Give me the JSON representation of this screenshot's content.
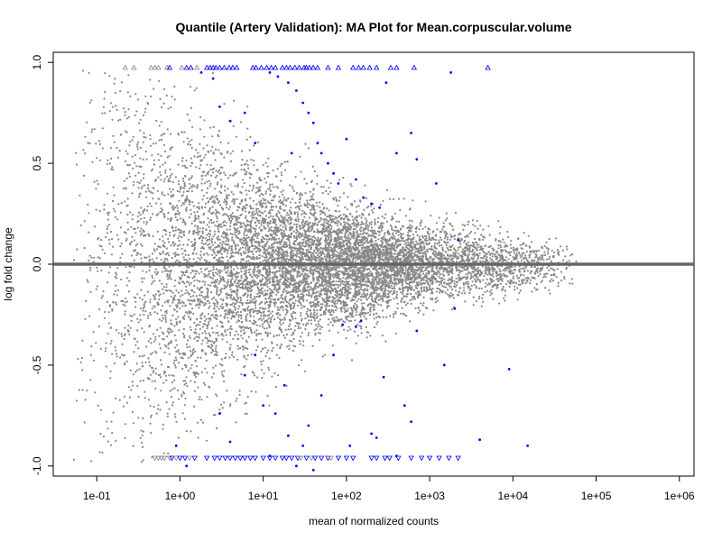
{
  "chart_data": {
    "type": "scatter",
    "title": "Quantile (Artery Validation): MA Plot for Mean.corpuscular.volume",
    "xlabel": "mean of normalized counts",
    "ylabel": "log fold change",
    "x_scale": "log10",
    "xlim": [
      0.03,
      1500000
    ],
    "ylim": [
      -1.05,
      1.05
    ],
    "x_ticks": [
      {
        "value": 0.1,
        "label": "1e-01"
      },
      {
        "value": 1,
        "label": "1e+00"
      },
      {
        "value": 10,
        "label": "1e+01"
      },
      {
        "value": 100,
        "label": "1e+02"
      },
      {
        "value": 1000,
        "label": "1e+03"
      },
      {
        "value": 10000,
        "label": "1e+04"
      },
      {
        "value": 100000,
        "label": "1e+05"
      },
      {
        "value": 1000000,
        "label": "1e+06"
      }
    ],
    "y_ticks": [
      {
        "value": 1.0,
        "label": "1.0"
      },
      {
        "value": 0.5,
        "label": "0.5"
      },
      {
        "value": 0.0,
        "label": "0.0"
      },
      {
        "value": -0.5,
        "label": "-0.5"
      },
      {
        "value": -1.0,
        "label": "-1.0"
      }
    ],
    "reference_line": {
      "y": 0,
      "color": "#666666"
    },
    "colors": {
      "not_significant": "#888888",
      "significant": "#0000ff"
    },
    "significant_points": [
      {
        "x": 12,
        "y": 0.95
      },
      {
        "x": 15,
        "y": 0.93
      },
      {
        "x": 20,
        "y": 0.9
      },
      {
        "x": 25,
        "y": 0.86
      },
      {
        "x": 30,
        "y": 0.8
      },
      {
        "x": 35,
        "y": 0.75
      },
      {
        "x": 40,
        "y": 0.7
      },
      {
        "x": 45,
        "y": 0.6
      },
      {
        "x": 50,
        "y": 0.55
      },
      {
        "x": 60,
        "y": 0.5
      },
      {
        "x": 70,
        "y": 0.45
      },
      {
        "x": 80,
        "y": 0.4
      },
      {
        "x": 100,
        "y": 0.62
      },
      {
        "x": 130,
        "y": 0.42
      },
      {
        "x": 160,
        "y": 0.33
      },
      {
        "x": 200,
        "y": 0.3
      },
      {
        "x": 250,
        "y": 0.28
      },
      {
        "x": 300,
        "y": 0.9
      },
      {
        "x": 400,
        "y": 0.55
      },
      {
        "x": 600,
        "y": 0.65
      },
      {
        "x": 700,
        "y": 0.52
      },
      {
        "x": 1200,
        "y": 0.4
      },
      {
        "x": 1800,
        "y": 0.95
      },
      {
        "x": 2200,
        "y": 0.12
      },
      {
        "x": 3,
        "y": 0.78
      },
      {
        "x": 4,
        "y": 0.71
      },
      {
        "x": 6,
        "y": 0.75
      },
      {
        "x": 2.5,
        "y": 0.92
      },
      {
        "x": 1.8,
        "y": 0.95
      },
      {
        "x": 8,
        "y": 0.6
      },
      {
        "x": 22,
        "y": 0.55
      },
      {
        "x": 0.9,
        "y": -0.9
      },
      {
        "x": 1.2,
        "y": -1.0
      },
      {
        "x": 3,
        "y": -0.74
      },
      {
        "x": 4,
        "y": -0.88
      },
      {
        "x": 6,
        "y": -0.55
      },
      {
        "x": 8,
        "y": -0.45
      },
      {
        "x": 10,
        "y": -0.7
      },
      {
        "x": 12,
        "y": -0.95
      },
      {
        "x": 14,
        "y": -0.74
      },
      {
        "x": 18,
        "y": -0.6
      },
      {
        "x": 20,
        "y": -0.85
      },
      {
        "x": 25,
        "y": -1.0
      },
      {
        "x": 30,
        "y": -0.9
      },
      {
        "x": 35,
        "y": -0.8
      },
      {
        "x": 40,
        "y": -1.02
      },
      {
        "x": 50,
        "y": -0.65
      },
      {
        "x": 70,
        "y": -0.45
      },
      {
        "x": 90,
        "y": -0.3
      },
      {
        "x": 110,
        "y": -0.9
      },
      {
        "x": 130,
        "y": -0.31
      },
      {
        "x": 150,
        "y": -0.28
      },
      {
        "x": 200,
        "y": -0.84
      },
      {
        "x": 230,
        "y": -0.86
      },
      {
        "x": 280,
        "y": -0.56
      },
      {
        "x": 400,
        "y": -0.95
      },
      {
        "x": 500,
        "y": -0.7
      },
      {
        "x": 600,
        "y": -0.78
      },
      {
        "x": 700,
        "y": -0.33
      },
      {
        "x": 1500,
        "y": -0.5
      },
      {
        "x": 2000,
        "y": -0.22
      },
      {
        "x": 4000,
        "y": -0.87
      },
      {
        "x": 9000,
        "y": -0.52
      },
      {
        "x": 15000,
        "y": -0.9
      }
    ],
    "upper_clipped_points": [
      {
        "x": 0.22,
        "significant": false
      },
      {
        "x": 0.28,
        "significant": false
      },
      {
        "x": 0.45,
        "significant": false
      },
      {
        "x": 0.5,
        "significant": false
      },
      {
        "x": 0.55,
        "significant": false
      },
      {
        "x": 0.7,
        "significant": false
      },
      {
        "x": 0.75,
        "significant": true
      },
      {
        "x": 1.05,
        "significant": false
      },
      {
        "x": 1.2,
        "significant": true
      },
      {
        "x": 1.35,
        "significant": true
      },
      {
        "x": 1.6,
        "significant": false
      },
      {
        "x": 2.1,
        "significant": true
      },
      {
        "x": 2.3,
        "significant": true
      },
      {
        "x": 2.5,
        "significant": true
      },
      {
        "x": 2.7,
        "significant": true
      },
      {
        "x": 3.0,
        "significant": true
      },
      {
        "x": 3.4,
        "significant": true
      },
      {
        "x": 3.9,
        "significant": true
      },
      {
        "x": 4.3,
        "significant": true
      },
      {
        "x": 4.8,
        "significant": true
      },
      {
        "x": 7.5,
        "significant": true
      },
      {
        "x": 8.2,
        "significant": true
      },
      {
        "x": 9.5,
        "significant": true
      },
      {
        "x": 11,
        "significant": true
      },
      {
        "x": 12.5,
        "significant": true
      },
      {
        "x": 14,
        "significant": true
      },
      {
        "x": 17,
        "significant": true
      },
      {
        "x": 19,
        "significant": true
      },
      {
        "x": 21,
        "significant": true
      },
      {
        "x": 24,
        "significant": true
      },
      {
        "x": 27,
        "significant": true
      },
      {
        "x": 31,
        "significant": true
      },
      {
        "x": 33,
        "significant": true
      },
      {
        "x": 36,
        "significant": true
      },
      {
        "x": 40,
        "significant": true
      },
      {
        "x": 45,
        "significant": true
      },
      {
        "x": 60,
        "significant": true
      },
      {
        "x": 80,
        "significant": true
      },
      {
        "x": 120,
        "significant": true
      },
      {
        "x": 140,
        "significant": true
      },
      {
        "x": 160,
        "significant": true
      },
      {
        "x": 190,
        "significant": true
      },
      {
        "x": 230,
        "significant": true
      },
      {
        "x": 340,
        "significant": true
      },
      {
        "x": 400,
        "significant": true
      },
      {
        "x": 650,
        "significant": true
      },
      {
        "x": 5000,
        "significant": true
      }
    ],
    "lower_clipped_points": [
      {
        "x": 0.5,
        "significant": false
      },
      {
        "x": 0.55,
        "significant": false
      },
      {
        "x": 0.6,
        "significant": false
      },
      {
        "x": 0.65,
        "significant": false
      },
      {
        "x": 0.75,
        "significant": false
      },
      {
        "x": 0.8,
        "significant": true
      },
      {
        "x": 0.9,
        "significant": false
      },
      {
        "x": 1.0,
        "significant": true
      },
      {
        "x": 1.15,
        "significant": true
      },
      {
        "x": 1.3,
        "significant": false
      },
      {
        "x": 1.5,
        "significant": true
      },
      {
        "x": 2.1,
        "significant": true
      },
      {
        "x": 2.6,
        "significant": true
      },
      {
        "x": 3.0,
        "significant": true
      },
      {
        "x": 3.5,
        "significant": true
      },
      {
        "x": 4.0,
        "significant": true
      },
      {
        "x": 4.6,
        "significant": true
      },
      {
        "x": 5.3,
        "significant": true
      },
      {
        "x": 6.0,
        "significant": true
      },
      {
        "x": 7.0,
        "significant": true
      },
      {
        "x": 8.0,
        "significant": true
      },
      {
        "x": 10,
        "significant": true
      },
      {
        "x": 12,
        "significant": true
      },
      {
        "x": 14,
        "significant": true
      },
      {
        "x": 17,
        "significant": true
      },
      {
        "x": 19,
        "significant": true
      },
      {
        "x": 22,
        "significant": true
      },
      {
        "x": 26,
        "significant": true
      },
      {
        "x": 28,
        "significant": false
      },
      {
        "x": 33,
        "significant": true
      },
      {
        "x": 38,
        "significant": false
      },
      {
        "x": 42,
        "significant": true
      },
      {
        "x": 50,
        "significant": true
      },
      {
        "x": 60,
        "significant": true
      },
      {
        "x": 65,
        "significant": false
      },
      {
        "x": 80,
        "significant": true
      },
      {
        "x": 100,
        "significant": true
      },
      {
        "x": 120,
        "significant": true
      },
      {
        "x": 200,
        "significant": true
      },
      {
        "x": 230,
        "significant": true
      },
      {
        "x": 290,
        "significant": true
      },
      {
        "x": 330,
        "significant": true
      },
      {
        "x": 420,
        "significant": true
      },
      {
        "x": 600,
        "significant": true
      },
      {
        "x": 800,
        "significant": true
      },
      {
        "x": 1000,
        "significant": true
      },
      {
        "x": 1300,
        "significant": true
      },
      {
        "x": 1700,
        "significant": true
      },
      {
        "x": 2200,
        "significant": true
      }
    ]
  }
}
